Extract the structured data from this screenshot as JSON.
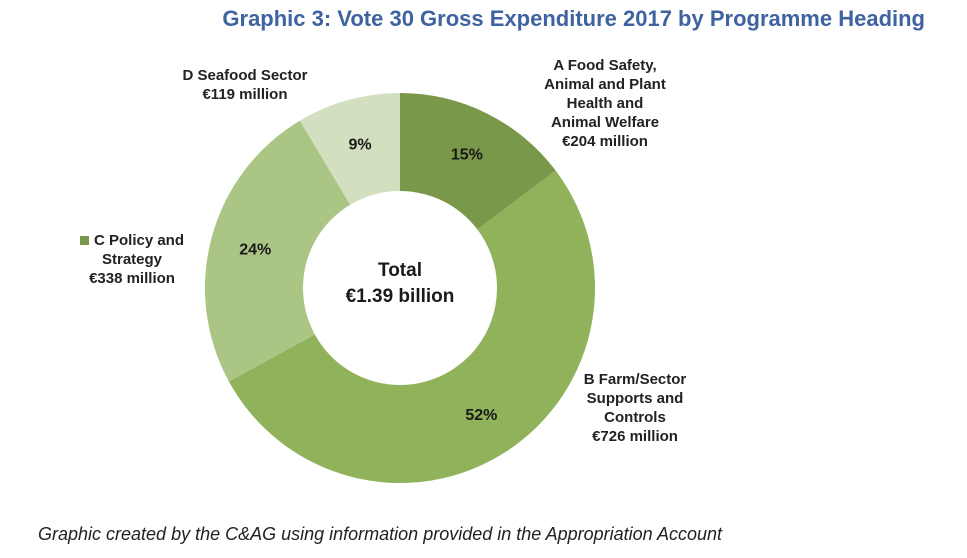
{
  "chart_data": {
    "type": "pie",
    "title": "Graphic 3: Vote 30 Gross Expenditure 2017 by Programme Heading",
    "center_label": [
      "Total",
      "€1.39 billion"
    ],
    "slices": [
      {
        "name": "A Food Safety,\nAnimal and Plant\nHealth and\nAnimal Welfare",
        "amount": "€204 million",
        "value": 204,
        "percent_label": "15%",
        "color": "#7a9849"
      },
      {
        "name": "B Farm/Sector\nSupports and\nControls",
        "amount": "€726 million",
        "value": 726,
        "percent_label": "52%",
        "color": "#90b25b"
      },
      {
        "name": "C Policy and\nStrategy",
        "amount": "€338 million",
        "value": 338,
        "percent_label": "24%",
        "color": "#abc684"
      },
      {
        "name": "D Seafood Sector",
        "amount": "€119 million",
        "value": 119,
        "percent_label": "9%",
        "color": "#d3e0bf"
      }
    ],
    "legend_marker_color": "#7a9849"
  },
  "caption": "Graphic created by the C&AG using information provided in the Appropriation Account"
}
